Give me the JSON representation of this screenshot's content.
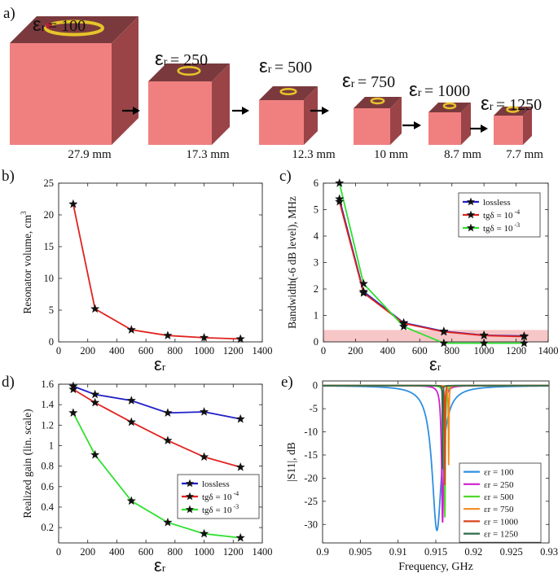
{
  "colors": {
    "cube_front": "#f08080",
    "cube_side": "#9a4448",
    "cube_top": "#7a3a3d",
    "ring": "#e5c52a",
    "lossless": "#1f1fc8",
    "tg4": "#e0231f",
    "tg3": "#2fe02f",
    "band": "#f7c6c6",
    "grid_axis": "#222222"
  },
  "panel_a": {
    "label": "a)",
    "cubes": [
      {
        "eps_symbol": "εr",
        "eps_text": "= 100",
        "size_label": "27.9 mm"
      },
      {
        "eps_symbol": "εr",
        "eps_text": "= 250",
        "size_label": "17.3 mm"
      },
      {
        "eps_symbol": "εr",
        "eps_text": "= 500",
        "size_label": "12.3 mm"
      },
      {
        "eps_symbol": "εr",
        "eps_text": "= 750",
        "size_label": "10 mm"
      },
      {
        "eps_symbol": "εr",
        "eps_text": "= 1000",
        "size_label": "8.7 mm"
      },
      {
        "eps_symbol": "εr",
        "eps_text": "= 1250",
        "size_label": "7.7 mm"
      }
    ]
  },
  "chart_data": [
    {
      "panel": "b)",
      "type": "line",
      "title": "",
      "xlabel": "εr",
      "ylabel": "Resonator volume, cm",
      "ylabel_sup": "3",
      "xlim": [
        0,
        1400
      ],
      "ylim": [
        0,
        25
      ],
      "xticks": [
        0,
        200,
        400,
        600,
        800,
        1000,
        1200,
        1400
      ],
      "yticks": [
        0,
        5,
        10,
        15,
        20,
        25
      ],
      "series": [
        {
          "name": "volume",
          "x": [
            100,
            250,
            500,
            750,
            1000,
            1250
          ],
          "y": [
            21.7,
            5.2,
            1.9,
            1.0,
            0.66,
            0.46
          ]
        }
      ]
    },
    {
      "panel": "c)",
      "type": "line",
      "xlabel": "εr",
      "ylabel": "Bandwidth(-6 dB level), MHz",
      "xlim": [
        0,
        1400
      ],
      "ylim": [
        0,
        6
      ],
      "xticks": [
        0,
        200,
        400,
        600,
        800,
        1000,
        1200,
        1400
      ],
      "yticks": [
        0,
        1,
        2,
        3,
        4,
        5,
        6
      ],
      "band": [
        0,
        0.45
      ],
      "legend": [
        "lossless",
        "tgδ = 10",
        "tgδ = 10"
      ],
      "legend_exp": [
        "",
        "-4",
        "-3"
      ],
      "series": [
        {
          "name": "lossless",
          "x": [
            100,
            250,
            500,
            750,
            1000,
            1250
          ],
          "y": [
            5.4,
            1.9,
            0.72,
            0.4,
            0.25,
            0.22
          ]
        },
        {
          "name": "tgδ = 10^-4",
          "x": [
            100,
            250,
            500,
            750,
            1000,
            1250
          ],
          "y": [
            5.3,
            1.85,
            0.7,
            0.38,
            0.24,
            0.2
          ]
        },
        {
          "name": "tgδ = 10^-3",
          "x": [
            100,
            250,
            500,
            750,
            1000,
            1250
          ],
          "y": [
            6.0,
            2.2,
            0.58,
            -0.05,
            -0.05,
            -0.05
          ]
        }
      ]
    },
    {
      "panel": "d)",
      "type": "line",
      "xlabel": "εr",
      "ylabel": "Realized gain (lin. scale)",
      "xlim": [
        0,
        1400
      ],
      "ylim": [
        0.05,
        1.6
      ],
      "xticks": [
        0,
        200,
        400,
        600,
        800,
        1000,
        1200,
        1400
      ],
      "yticks": [
        0.2,
        0.4,
        0.6,
        0.8,
        1,
        1.2,
        1.4,
        1.6
      ],
      "ytick_labels": [
        "0.2",
        "0.4",
        "0.6",
        "0.8",
        "1",
        "1.2",
        "1.4",
        "1.6"
      ],
      "legend": [
        "lossless",
        "tgδ = 10",
        "tgδ = 10"
      ],
      "legend_exp": [
        "",
        "-4",
        "-3"
      ],
      "series": [
        {
          "name": "lossless",
          "x": [
            100,
            250,
            500,
            750,
            1000,
            1250
          ],
          "y": [
            1.58,
            1.5,
            1.44,
            1.32,
            1.33,
            1.26
          ]
        },
        {
          "name": "tgδ = 10^-4",
          "x": [
            100,
            250,
            500,
            750,
            1000,
            1250
          ],
          "y": [
            1.55,
            1.42,
            1.23,
            1.05,
            0.89,
            0.79
          ]
        },
        {
          "name": "tgδ = 10^-3",
          "x": [
            100,
            250,
            500,
            750,
            1000,
            1250
          ],
          "y": [
            1.32,
            0.91,
            0.46,
            0.25,
            0.14,
            0.1
          ]
        }
      ]
    },
    {
      "panel": "e)",
      "type": "line",
      "xlabel": "Frequency, GHz",
      "ylabel": "|S11|, dB",
      "xlim": [
        0.9,
        0.93
      ],
      "ylim": [
        -34,
        1
      ],
      "xticks": [
        0.9,
        0.905,
        0.91,
        0.915,
        0.92,
        0.925,
        0.93
      ],
      "xtick_labels": [
        "0.9",
        "0.905",
        "0.91",
        "0.915",
        "0.92",
        "0.925",
        "0.93"
      ],
      "yticks": [
        0,
        -5,
        -10,
        -15,
        -20,
        -25,
        -30
      ],
      "legend": [
        "εr = 100",
        "εr = 250",
        "εr = 500",
        "εr = 750",
        "εr = 1000",
        "εr = 1250"
      ],
      "series": [
        {
          "name": "εr = 100",
          "color": "#2f8fe0",
          "f0": 0.91515,
          "depth": -31.3,
          "width": 0.00155
        },
        {
          "name": "εr = 250",
          "color": "#d21fd2",
          "f0": 0.9159,
          "depth": -29.6,
          "width": 0.00032
        },
        {
          "name": "εr = 500",
          "color": "#4fd82a",
          "f0": 0.9162,
          "depth": -28.5,
          "width": 0.00015
        },
        {
          "name": "εr = 750",
          "color": "#f28a1e",
          "f0": 0.9167,
          "depth": -17.2,
          "width": 9e-05
        },
        {
          "name": "εr = 1000",
          "color": "#d9451f",
          "f0": 0.9162,
          "depth": -21.5,
          "width": 7e-05
        },
        {
          "name": "εr = 1250",
          "color": "#2e6b4a",
          "f0": 0.9159,
          "depth": -18.0,
          "width": 5e-05
        }
      ]
    }
  ]
}
